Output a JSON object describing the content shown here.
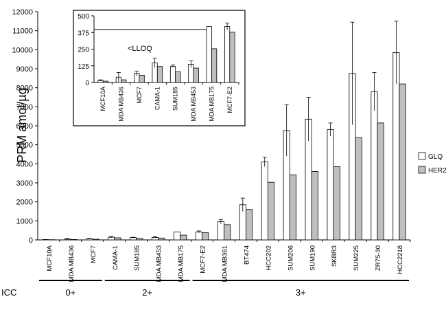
{
  "chart_data": [
    {
      "type": "bar",
      "ylabel": "PRM amol/µg",
      "ylim": [
        0,
        12000
      ],
      "yticks": [
        0,
        1000,
        2000,
        3000,
        4000,
        5000,
        6000,
        7000,
        8000,
        9000,
        10000,
        11000,
        12000
      ],
      "grid": false,
      "legend_position": "right",
      "categories": [
        "MCF10A",
        "MDA MB436",
        "MCF7",
        "CAMA-1",
        "SUM185",
        "MDA MB453",
        "MDA MB175",
        "MCF7-E2",
        "MDA MB361",
        "BT474",
        "HCC202",
        "SUM206",
        "SUM190",
        "SKBR3",
        "SUM225",
        "ZR75-30",
        "HCC2218"
      ],
      "series": [
        {
          "name": "GLQ",
          "color": "#ffffff",
          "values": [
            15,
            40,
            60,
            140,
            120,
            130,
            420,
            420,
            960,
            1850,
            4100,
            5750,
            6350,
            5800,
            8750,
            7800,
            9850
          ],
          "errors": [
            5,
            30,
            20,
            40,
            20,
            40,
            0,
            50,
            120,
            350,
            250,
            1350,
            1150,
            350,
            2700,
            1000,
            1650
          ]
        },
        {
          "name": "HER2",
          "color": "#bfbfbf",
          "values": [
            10,
            20,
            35,
            110,
            80,
            100,
            250,
            380,
            800,
            1600,
            3030,
            3420,
            3600,
            3850,
            5380,
            6150,
            8200
          ],
          "errors": []
        }
      ],
      "groups": {
        "label": "ICC",
        "items": [
          {
            "label": "0+",
            "from": 0,
            "to": 2
          },
          {
            "label": "2+",
            "from": 3,
            "to": 6
          },
          {
            "label": "3+",
            "from": 7,
            "to": 16
          }
        ]
      }
    },
    {
      "type": "bar",
      "ylim": [
        0,
        500
      ],
      "yticks": [
        0,
        125,
        250,
        375,
        500
      ],
      "annotation": "<LLOQ",
      "lloq": 397,
      "categories": [
        "MCF10A",
        "MDA MB436",
        "MCF7",
        "CAMA-1",
        "SUM185",
        "MDA MB453",
        "MDA MB175",
        "MCF7-E2"
      ],
      "series": [
        {
          "name": "GLQ",
          "color": "#ffffff",
          "values": [
            15,
            40,
            68,
            147,
            122,
            137,
            420,
            420
          ],
          "errors": [
            5,
            35,
            18,
            35,
            10,
            25,
            0,
            25
          ]
        },
        {
          "name": "HER2",
          "color": "#bfbfbf",
          "values": [
            10,
            20,
            55,
            120,
            80,
            108,
            253,
            377
          ],
          "errors": []
        }
      ]
    }
  ]
}
